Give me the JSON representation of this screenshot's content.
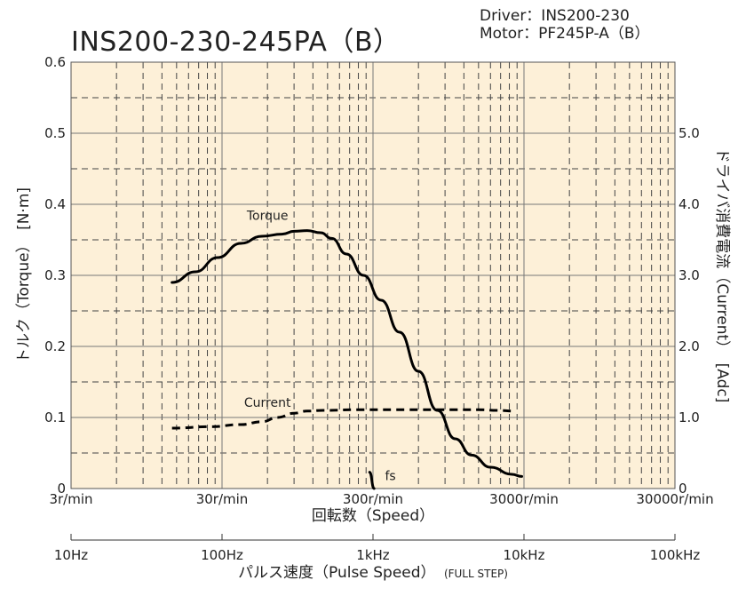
{
  "chart_data": {
    "type": "line",
    "title": "INS200-230-245PA（B）",
    "info": {
      "driver": "Driver：INS200-230",
      "motor": "Motor：PF245P-A（B）"
    },
    "x_scale": "log",
    "x_ticks": [
      "3r/min",
      "30r/min",
      "300r/min",
      "3000r/min",
      "30000r/min"
    ],
    "x_tick_values": [
      3,
      30,
      300,
      3000,
      30000
    ],
    "xlabel": "回転数（Speed）",
    "xlim": [
      3,
      30000
    ],
    "x2_ticks": [
      "10Hz",
      "100Hz",
      "1kHz",
      "10kHz",
      "100kHz"
    ],
    "x2_tick_values": [
      10,
      100,
      1000,
      10000,
      100000
    ],
    "x2label": "パルス速度（Pulse Speed）",
    "x2label_note": "(FULL STEP)",
    "ylabel": "トルク（Torque）　[N·m]",
    "ylim": [
      0,
      0.6
    ],
    "y_ticks": [
      "0",
      "0.1",
      "0.2",
      "0.3",
      "0.4",
      "0.5",
      "0.6"
    ],
    "y_tick_values": [
      0,
      0.1,
      0.2,
      0.3,
      0.4,
      0.5,
      0.6
    ],
    "y2label": "ドライバ消費電流（Current）　[Adc]",
    "y2lim": [
      0,
      6.0
    ],
    "y2_ticks": [
      "0",
      "1.0",
      "2.0",
      "3.0",
      "4.0",
      "5.0"
    ],
    "y2_tick_values": [
      0,
      1.0,
      2.0,
      3.0,
      4.0,
      5.0
    ],
    "grid": true,
    "background_color": "#fdf0d8",
    "line_color": "#000000",
    "series": [
      {
        "name": "Torque",
        "axis": "left",
        "style": "solid",
        "points": [
          [
            14,
            0.29
          ],
          [
            20,
            0.305
          ],
          [
            28,
            0.325
          ],
          [
            40,
            0.345
          ],
          [
            55,
            0.355
          ],
          [
            75,
            0.358
          ],
          [
            90,
            0.362
          ],
          [
            110,
            0.363
          ],
          [
            135,
            0.36
          ],
          [
            160,
            0.352
          ],
          [
            200,
            0.33
          ],
          [
            260,
            0.3
          ],
          [
            340,
            0.265
          ],
          [
            450,
            0.22
          ],
          [
            600,
            0.165
          ],
          [
            800,
            0.11
          ],
          [
            1050,
            0.07
          ],
          [
            1350,
            0.047
          ],
          [
            1800,
            0.03
          ],
          [
            2500,
            0.02
          ],
          [
            2900,
            0.017
          ]
        ]
      },
      {
        "name": "Current",
        "axis": "right",
        "style": "dashed",
        "points": [
          [
            14,
            0.85
          ],
          [
            25,
            0.87
          ],
          [
            40,
            0.9
          ],
          [
            55,
            0.94
          ],
          [
            70,
            1.0
          ],
          [
            90,
            1.06
          ],
          [
            110,
            1.09
          ],
          [
            140,
            1.1
          ],
          [
            250,
            1.11
          ],
          [
            500,
            1.11
          ],
          [
            1000,
            1.11
          ],
          [
            1500,
            1.11
          ],
          [
            2000,
            1.1
          ],
          [
            2600,
            1.09
          ]
        ]
      },
      {
        "name": "fs",
        "axis": "left",
        "style": "solid",
        "points": [
          [
            285,
            0.023
          ],
          [
            305,
            0.0
          ]
        ]
      }
    ]
  }
}
